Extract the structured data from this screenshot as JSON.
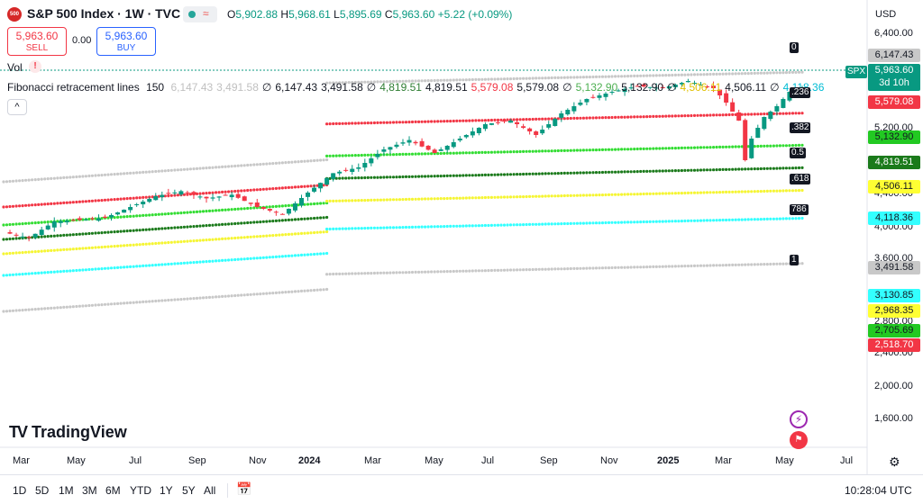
{
  "header": {
    "symbol_badge": "500",
    "title": "S&P 500 Index · 1W · TVC",
    "ohlc": {
      "o_label": "O",
      "o": "5,902.88",
      "h_label": "H",
      "h": "5,968.61",
      "l_label": "L",
      "l": "5,895.69",
      "c_label": "C",
      "c": "5,963.60",
      "change": "+5.22 (+0.09%)"
    }
  },
  "trade": {
    "sell_price": "5,963.60",
    "sell_label": "SELL",
    "spread": "0.00",
    "buy_price": "5,963.60",
    "buy_label": "BUY"
  },
  "indicators": {
    "vol_label": "Vol",
    "vol_warning": "!",
    "fib_label": "Fibonacci retracement lines",
    "fib_period": "150",
    "fib_values": [
      {
        "text": "6,147.43",
        "color": "#c0c0c0"
      },
      {
        "text": "3,491.58",
        "color": "#c0c0c0"
      },
      {
        "text": "∅",
        "color": "#131722"
      },
      {
        "text": "6,147.43",
        "color": "#131722"
      },
      {
        "text": "3,491.58",
        "color": "#131722"
      },
      {
        "text": "∅",
        "color": "#131722"
      },
      {
        "text": "4,819.51",
        "color": "#2e7d32"
      },
      {
        "text": "4,819.51",
        "color": "#131722"
      },
      {
        "text": "5,579.08",
        "color": "#f23645"
      },
      {
        "text": "5,579.08",
        "color": "#131722"
      },
      {
        "text": "∅",
        "color": "#131722"
      },
      {
        "text": "5,132.90",
        "color": "#4caf50"
      },
      {
        "text": "5,132.90",
        "color": "#131722"
      },
      {
        "text": "∅",
        "color": "#131722"
      },
      {
        "text": "4,506.11",
        "color": "#e0c000"
      },
      {
        "text": "4,506.11",
        "color": "#131722"
      },
      {
        "text": "∅",
        "color": "#131722"
      },
      {
        "text": "4,118.36",
        "color": "#00bcd4"
      }
    ]
  },
  "price_axis": {
    "currency": "USD",
    "ticks": [
      "6,400.00",
      "5,200.00",
      "4,400.00",
      "4,000.00",
      "3,600.00",
      "2,800.00",
      "2,400.00",
      "2,000.00",
      "1,600.00"
    ],
    "tags": [
      {
        "text": "6,147.43",
        "bg": "#c8c8c8",
        "fg": "#131722"
      },
      {
        "text": "5,579.08",
        "bg": "#f23645",
        "fg": "#ffffff"
      },
      {
        "text": "5,132.90",
        "bg": "#22c922",
        "fg": "#131722"
      },
      {
        "text": "4,819.51",
        "bg": "#1b7a1b",
        "fg": "#ffffff"
      },
      {
        "text": "4,506.11",
        "bg": "#ffff33",
        "fg": "#131722"
      },
      {
        "text": "4,118.36",
        "bg": "#33ffff",
        "fg": "#131722"
      },
      {
        "text": "3,491.58",
        "bg": "#c8c8c8",
        "fg": "#131722"
      },
      {
        "text": "3,130.85",
        "bg": "#33ffff",
        "fg": "#131722"
      },
      {
        "text": "2,968.35",
        "bg": "#ffff33",
        "fg": "#131722"
      },
      {
        "text": "2,705.69",
        "bg": "#22c922",
        "fg": "#131722"
      },
      {
        "text": "2,518.70",
        "bg": "#f23645",
        "fg": "#ffffff"
      }
    ],
    "current": {
      "symbol": "SPX",
      "price": "5,963.60",
      "countdown": "3d 10h",
      "color": "#089981"
    }
  },
  "fib_markers": [
    "0",
    ".236",
    ".382",
    "0.5",
    ".618",
    "786",
    "1"
  ],
  "chart_data": {
    "type": "candlestick",
    "symbol": "S&P 500 Index",
    "interval": "1W",
    "grid": false,
    "x_ticks": [
      "Mar",
      "May",
      "Jul",
      "Sep",
      "Nov",
      "2024",
      "Mar",
      "May",
      "Jul",
      "Sep",
      "Nov",
      "2025",
      "Mar",
      "May",
      "Jul"
    ],
    "y_ticks": [
      6400,
      5200,
      4400,
      4000,
      3600,
      2800,
      2400,
      2000,
      1600
    ],
    "ylim": [
      1350,
      6700
    ],
    "close_path": [
      [
        0,
        3950
      ],
      [
        4,
        3870
      ],
      [
        8,
        4100
      ],
      [
        12,
        4120
      ],
      [
        16,
        4150
      ],
      [
        20,
        4300
      ],
      [
        24,
        4450
      ],
      [
        28,
        4520
      ],
      [
        32,
        4420
      ],
      [
        36,
        4470
      ],
      [
        40,
        4300
      ],
      [
        44,
        4200
      ],
      [
        48,
        4500
      ],
      [
        52,
        4770
      ],
      [
        56,
        4850
      ],
      [
        60,
        5100
      ],
      [
        64,
        5230
      ],
      [
        68,
        5050
      ],
      [
        72,
        5250
      ],
      [
        76,
        5450
      ],
      [
        80,
        5500
      ],
      [
        84,
        5300
      ],
      [
        88,
        5600
      ],
      [
        92,
        5800
      ],
      [
        96,
        5900
      ],
      [
        100,
        5980
      ],
      [
        104,
        5950
      ],
      [
        108,
        6050
      ],
      [
        112,
        5950
      ],
      [
        114,
        5750
      ],
      [
        116,
        5500
      ],
      [
        117,
        4950
      ],
      [
        118,
        5250
      ],
      [
        120,
        5550
      ],
      [
        122,
        5700
      ],
      [
        124,
        5900
      ],
      [
        126,
        5963.6
      ]
    ],
    "fib_levels": [
      {
        "label": "0",
        "segments": [
          {
            "from": 0,
            "to": 51,
            "value": 4900
          },
          {
            "from": 51,
            "to": 126,
            "value": 6147.43
          }
        ],
        "color": "#c8c8c8"
      },
      {
        "label": ".236",
        "segments": [
          {
            "from": 0,
            "to": 51,
            "value": 4550
          },
          {
            "from": 51,
            "to": 126,
            "value": 5579.08
          }
        ],
        "color": "#f23645"
      },
      {
        "label": ".382",
        "segments": [
          {
            "from": 0,
            "to": 51,
            "value": 4300
          },
          {
            "from": 51,
            "to": 126,
            "value": 5132.9
          }
        ],
        "color": "#33dd33"
      },
      {
        "label": "0.5",
        "segments": [
          {
            "from": 0,
            "to": 51,
            "value": 4100
          },
          {
            "from": 51,
            "to": 126,
            "value": 4819.51
          }
        ],
        "color": "#1b7a1b"
      },
      {
        "label": ".618",
        "segments": [
          {
            "from": 0,
            "to": 51,
            "value": 3900
          },
          {
            "from": 51,
            "to": 126,
            "value": 4506.11
          }
        ],
        "color": "#f5f533"
      },
      {
        "label": "786",
        "segments": [
          {
            "from": 0,
            "to": 51,
            "value": 3600
          },
          {
            "from": 51,
            "to": 126,
            "value": 4118.36
          }
        ],
        "color": "#33ffff"
      },
      {
        "label": "1",
        "segments": [
          {
            "from": 0,
            "to": 51,
            "value": 3100
          },
          {
            "from": 51,
            "to": 126,
            "value": 3491.58
          }
        ],
        "color": "#c8c8c8"
      }
    ]
  },
  "branding": {
    "logo_text": "TradingView",
    "logo_mark": "TV"
  },
  "bottom_bar": {
    "ranges": [
      "1D",
      "5D",
      "1M",
      "3M",
      "6M",
      "YTD",
      "1Y",
      "5Y",
      "All"
    ],
    "time": "10:28:04 UTC"
  }
}
